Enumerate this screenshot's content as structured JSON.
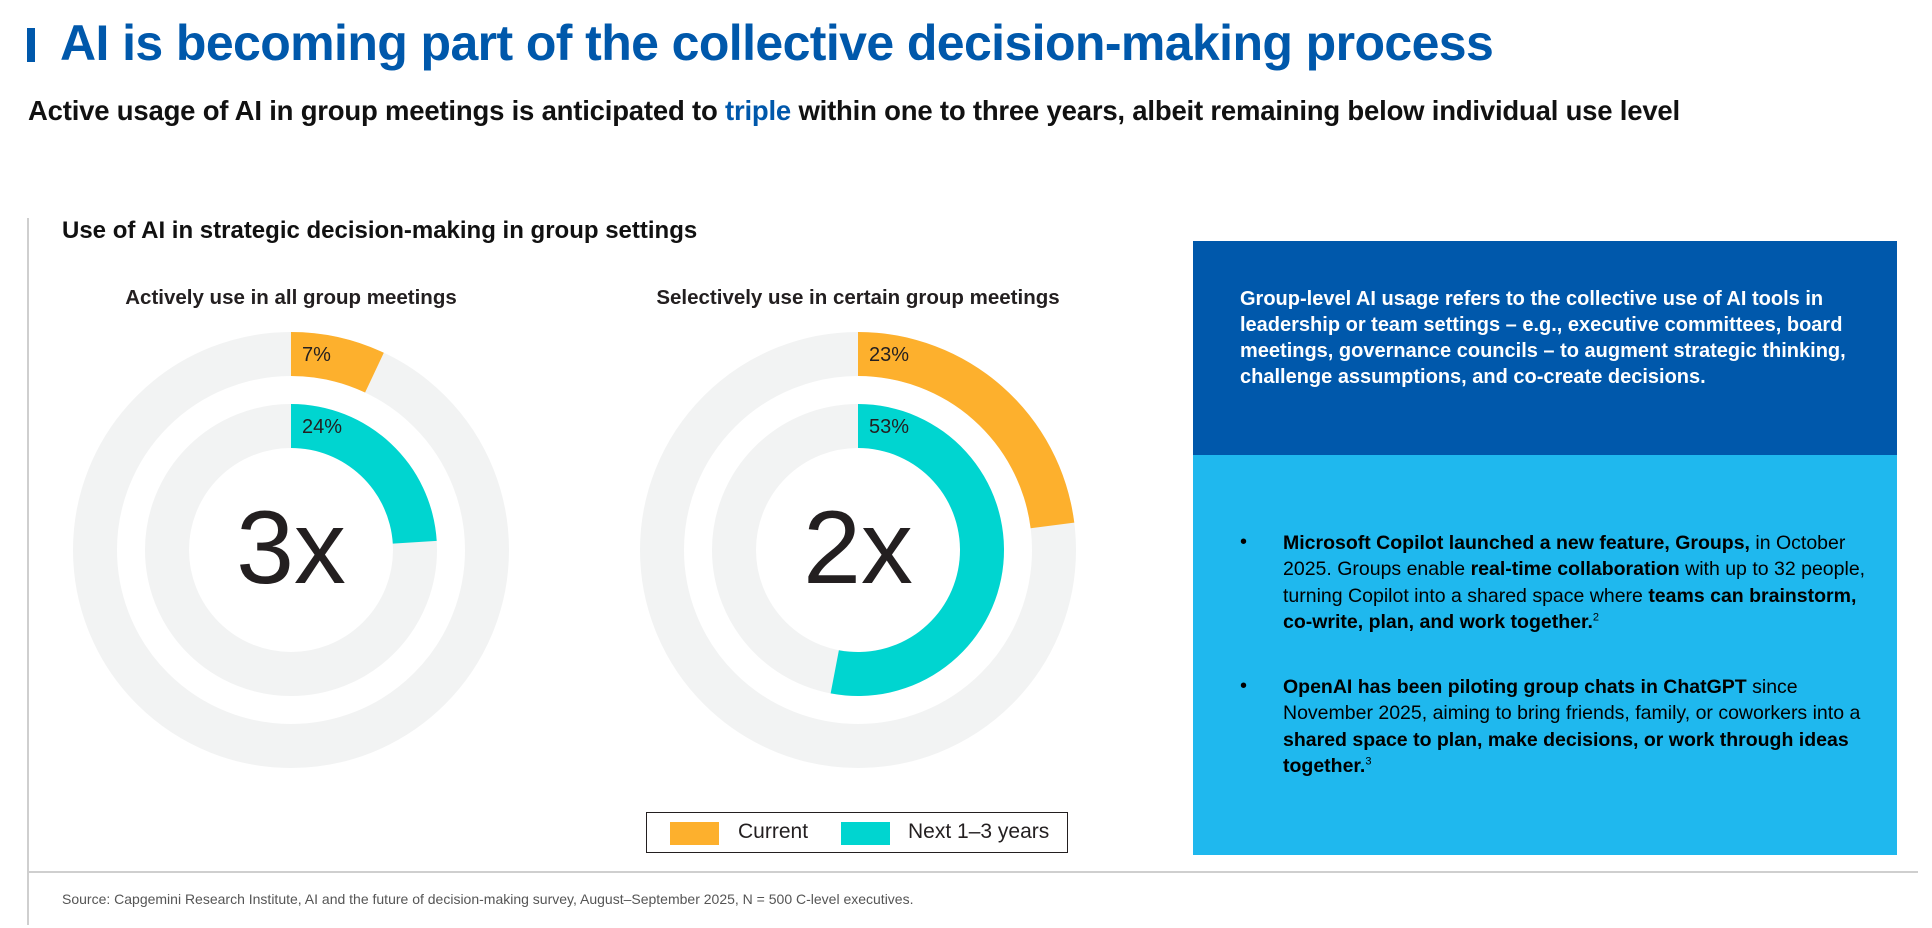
{
  "header": {
    "title": "AI is becoming part of the collective decision-making process",
    "subtitle_before": "Active usage of AI in group meetings is anticipated to ",
    "subtitle_highlight": "triple",
    "subtitle_after": " within one to three years, albeit remaining below individual use level"
  },
  "colors": {
    "brand_blue": "#0058AB",
    "light_blue": "#1FB8EE",
    "current": "#FDB02D",
    "next": "#00D5D0",
    "track": "#F2F3F3"
  },
  "chart_data": {
    "type": "pie",
    "subtype": "concentric-donut",
    "title": "Use of AI in strategic decision-making in group settings",
    "series_names": [
      "Current",
      "Next 1–3 years"
    ],
    "legend": {
      "position": "bottom",
      "entries": [
        "Current",
        "Next 1–3 years"
      ]
    },
    "charts": [
      {
        "title": "Actively use in all group meetings",
        "center_label": "3x",
        "values": [
          {
            "series": "Current",
            "value": 7,
            "label": "7%"
          },
          {
            "series": "Next 1–3 years",
            "value": 24,
            "label": "24%"
          }
        ]
      },
      {
        "title": "Selectively use in certain group meetings",
        "center_label": "2x",
        "values": [
          {
            "series": "Current",
            "value": 23,
            "label": "23%"
          },
          {
            "series": "Next 1–3 years",
            "value": 53,
            "label": "53%"
          }
        ]
      }
    ]
  },
  "panel": {
    "definition": "Group-level AI usage refers to the collective use of AI tools in leadership or team settings – e.g., executive committees, board meetings, governance councils – to augment strategic thinking, challenge assumptions, and co-create decisions.",
    "bullet_glyph": "•",
    "bullets": [
      {
        "b1": "Microsoft Copilot launched a new feature, Groups,",
        "t1": " in October 2025. Groups enable ",
        "b2": "real-time collaboration",
        "t2": " with up to 32 people, turning Copilot into a shared space where ",
        "b3": "teams can brainstorm, co-write, plan, and work together.",
        "sup": "2"
      },
      {
        "b1": "OpenAI has been piloting group chats in ChatGPT",
        "t1": " since November 2025, aiming to bring friends, family, or coworkers into a ",
        "b2": "shared space to plan, make decisions, or work through ideas together.",
        "sup": "3"
      }
    ]
  },
  "footer": {
    "source": "Source: Capgemini Research Institute, AI and the future of decision-making survey, August–September 2025, N = 500 C-level executives."
  }
}
